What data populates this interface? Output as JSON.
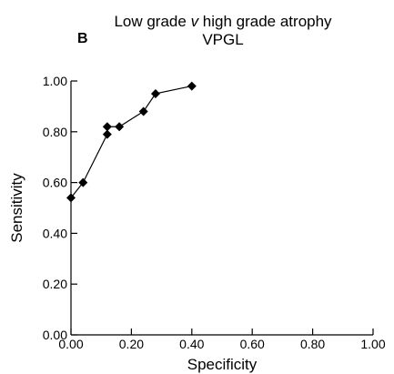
{
  "chart_data": {
    "type": "line",
    "panel_label": "B",
    "title": "Low grade v high grade atrophy",
    "title_prefix": "Low grade ",
    "title_italic": "v",
    "title_suffix": " high grade atrophy",
    "subtitle": "VPGL",
    "xlabel": "Specificity",
    "ylabel": "Sensitivity",
    "xlim": [
      0,
      1
    ],
    "ylim": [
      0,
      1
    ],
    "xticks": [
      "0.00",
      "0.20",
      "0.40",
      "0.60",
      "0.80",
      "1.00"
    ],
    "yticks": [
      "0.00",
      "0.20",
      "0.40",
      "0.60",
      "0.80",
      "1.00"
    ],
    "grid": false,
    "marker": "diamond",
    "series": [
      {
        "x": [
          0.0,
          0.04,
          0.12,
          0.12,
          0.16,
          0.24,
          0.28,
          0.4
        ],
        "y": [
          0.54,
          0.6,
          0.79,
          0.82,
          0.82,
          0.88,
          0.95,
          0.98
        ]
      }
    ],
    "colors": {
      "line": "#000000",
      "marker": "#000000"
    }
  }
}
